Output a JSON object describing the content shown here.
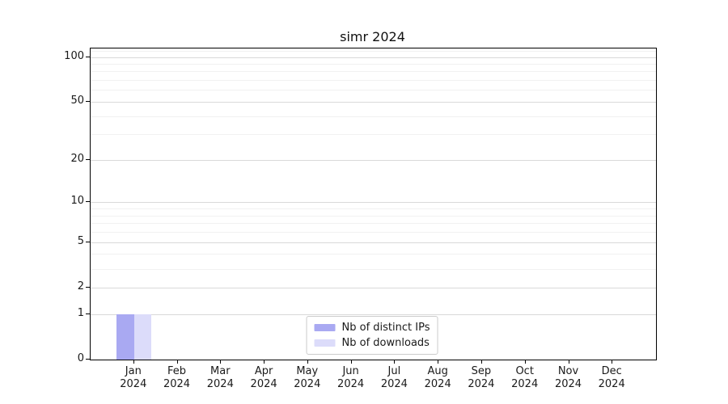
{
  "figure": {
    "title": "simr 2024",
    "background": "#ffffff"
  },
  "chart_data": {
    "type": "bar",
    "title": "simr 2024",
    "categories": [
      "Jan",
      "Feb",
      "Mar",
      "Apr",
      "May",
      "Jun",
      "Jul",
      "Aug",
      "Sep",
      "Oct",
      "Nov",
      "Dec"
    ],
    "category_year": "2024",
    "series": [
      {
        "name": "Nb of distinct IPs",
        "color": "#a9a9f2",
        "values": [
          1,
          0,
          0,
          0,
          0,
          0,
          0,
          0,
          0,
          0,
          0,
          0
        ]
      },
      {
        "name": "Nb of downloads",
        "color": "#dcdcfa",
        "values": [
          1,
          0,
          0,
          0,
          0,
          0,
          0,
          0,
          0,
          0,
          0,
          0
        ]
      }
    ],
    "y_axis": {
      "scale": "log1p",
      "major_ticks": [
        0,
        1,
        2,
        5,
        10,
        20,
        50,
        100
      ],
      "minor_gridlines": [
        3,
        4,
        6,
        7,
        8,
        9,
        30,
        40,
        60,
        70,
        80,
        90,
        110
      ],
      "ylim": [
        0,
        114
      ]
    },
    "x_axis": {
      "xlim_units": [
        -1,
        12
      ]
    },
    "bar_width_units": 0.4,
    "grid": true,
    "legend": {
      "position": "lower center"
    }
  },
  "colors": {
    "major_grid": "#d9d9d9",
    "minor_grid": "#f1f1f1",
    "spine": "#000000",
    "text": "#1a1a1a",
    "legend_border": "#cccccc"
  }
}
